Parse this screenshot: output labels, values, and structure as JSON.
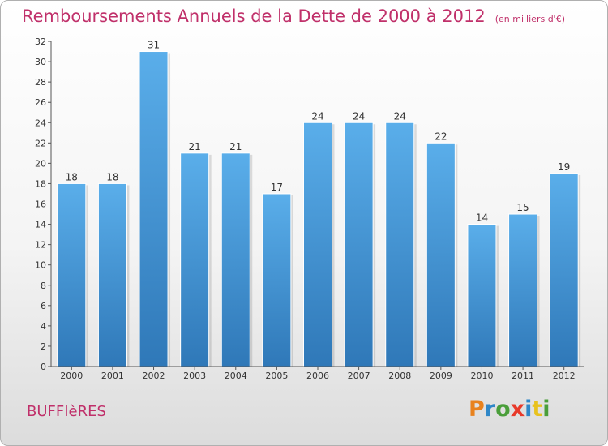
{
  "title": "Remboursements Annuels de la Dette de 2000 à 2012",
  "subtitle": "(en milliers d'€)",
  "commune": "BUFFIèRES",
  "brand": {
    "letters": [
      "P",
      "r",
      "o",
      "x",
      "i",
      "t",
      "i"
    ],
    "colors": [
      "#e8821e",
      "#2f87c8",
      "#4a9e3a",
      "#e83a2a",
      "#2f87c8",
      "#e8c21e",
      "#4a9e3a"
    ]
  },
  "colors": {
    "bar": "#3f93d6",
    "title": "#c0306a"
  },
  "chart_data": {
    "type": "bar",
    "categories": [
      "2000",
      "2001",
      "2002",
      "2003",
      "2004",
      "2005",
      "2006",
      "2007",
      "2008",
      "2009",
      "2010",
      "2011",
      "2012"
    ],
    "values": [
      18,
      18,
      31,
      21,
      21,
      17,
      24,
      24,
      24,
      22,
      14,
      15,
      19
    ],
    "title": "Remboursements Annuels de la Dette de 2000 à 2012",
    "xlabel": "",
    "ylabel": "",
    "ylim": [
      0,
      32
    ],
    "yticks": [
      0,
      2,
      4,
      6,
      8,
      10,
      12,
      14,
      16,
      18,
      20,
      22,
      24,
      26,
      28,
      30,
      32
    ],
    "grid": false,
    "data_labels": true
  }
}
